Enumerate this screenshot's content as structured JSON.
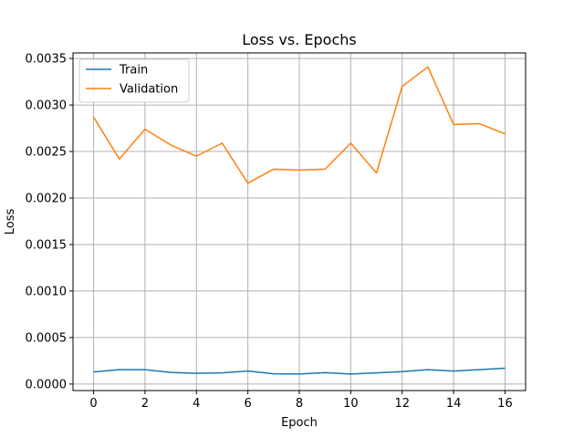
{
  "chart_data": {
    "type": "line",
    "title": "Loss vs. Epochs",
    "xlabel": "Epoch",
    "ylabel": "Loss",
    "xlim": [
      -0.8,
      16.8
    ],
    "ylim": [
      -7e-05,
      0.00356
    ],
    "xticks": [
      0,
      2,
      4,
      6,
      8,
      10,
      12,
      14,
      16
    ],
    "xtick_labels": [
      "0",
      "2",
      "4",
      "6",
      "8",
      "10",
      "12",
      "14",
      "16"
    ],
    "yticks": [
      0,
      0.0005,
      0.001,
      0.0015,
      0.002,
      0.0025,
      0.003,
      0.0035
    ],
    "ytick_labels": [
      "0.0000",
      "0.0005",
      "0.0010",
      "0.0015",
      "0.0020",
      "0.0025",
      "0.0030",
      "0.0035"
    ],
    "grid": true,
    "legend_position": "top-left",
    "x": [
      0,
      1,
      2,
      3,
      4,
      5,
      6,
      7,
      8,
      9,
      10,
      11,
      12,
      13,
      14,
      15,
      16
    ],
    "series": [
      {
        "name": "Train",
        "color": "#1f77b4",
        "values": [
          0.00013,
          0.000155,
          0.000155,
          0.000125,
          0.000115,
          0.00012,
          0.00014,
          0.00011,
          0.000108,
          0.000122,
          0.000108,
          0.00012,
          0.000133,
          0.000155,
          0.00014,
          0.000155,
          0.00017
        ]
      },
      {
        "name": "Validation",
        "color": "#ff7f0e",
        "values": [
          0.00287,
          0.00242,
          0.00274,
          0.00257,
          0.00245,
          0.00259,
          0.00216,
          0.00231,
          0.0023,
          0.00231,
          0.00259,
          0.00227,
          0.0032,
          0.00341,
          0.00279,
          0.0028,
          0.00269
        ]
      }
    ]
  }
}
